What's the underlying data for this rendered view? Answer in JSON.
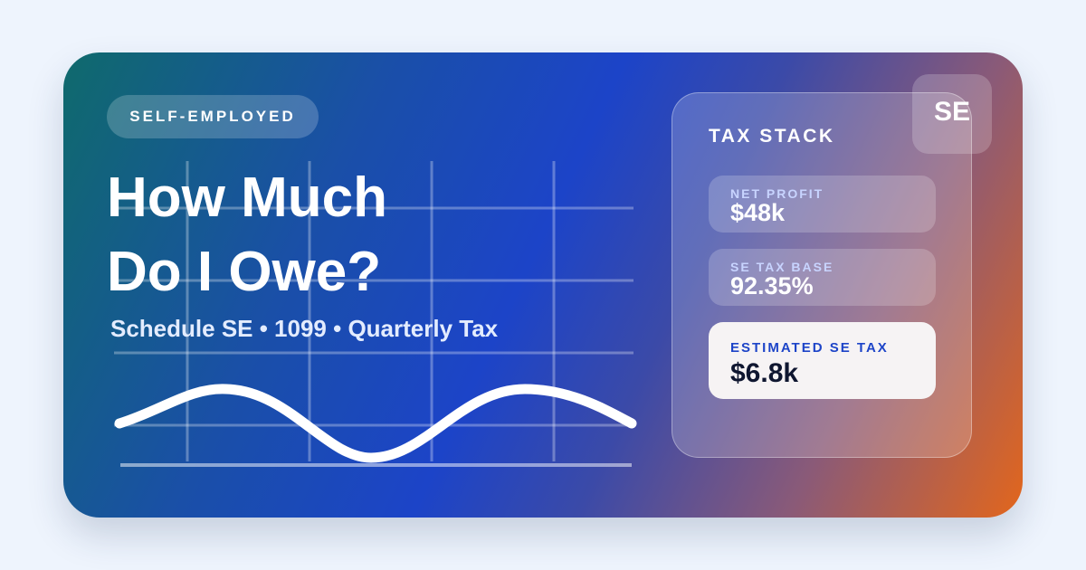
{
  "badge": "SELF-EMPLOYED",
  "title": {
    "line1": "How Much",
    "line2": "Do I Owe?"
  },
  "subtitle": "Schedule SE • 1099 • Quarterly Tax",
  "panel": {
    "title": "TAX STACK",
    "corner_badge": "SE",
    "items": [
      {
        "label": "NET PROFIT",
        "value": "$48k"
      },
      {
        "label": "SE TAX BASE",
        "value": "92.35%"
      },
      {
        "label": "ESTIMATED SE TAX",
        "value": "$6.8k"
      }
    ]
  }
}
